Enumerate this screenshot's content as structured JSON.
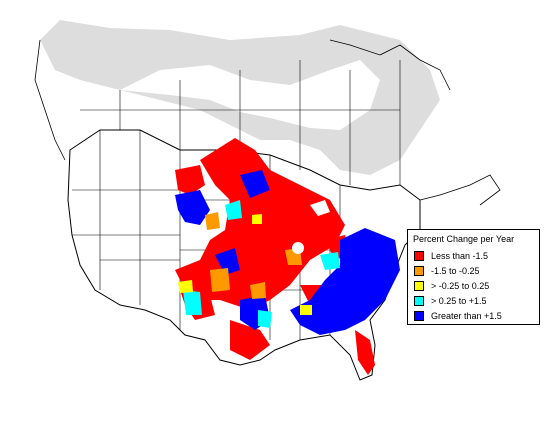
{
  "legend": {
    "title": "Percent Change per Year",
    "items": [
      {
        "label": "Less than -1.5",
        "color": "#ff0000"
      },
      {
        "label": "-1.5 to -0.25",
        "color": "#ff9900"
      },
      {
        "label": "> -0.25 to 0.25",
        "color": "#ffff00"
      },
      {
        "label": "> 0.25 to +1.5",
        "color": "#00ffff"
      },
      {
        "label": "Greater than +1.5",
        "color": "#0000ff"
      }
    ]
  },
  "colors": {
    "land": "#ffffff",
    "no_data_region": "#dddddd",
    "boundary": "#000000"
  }
}
